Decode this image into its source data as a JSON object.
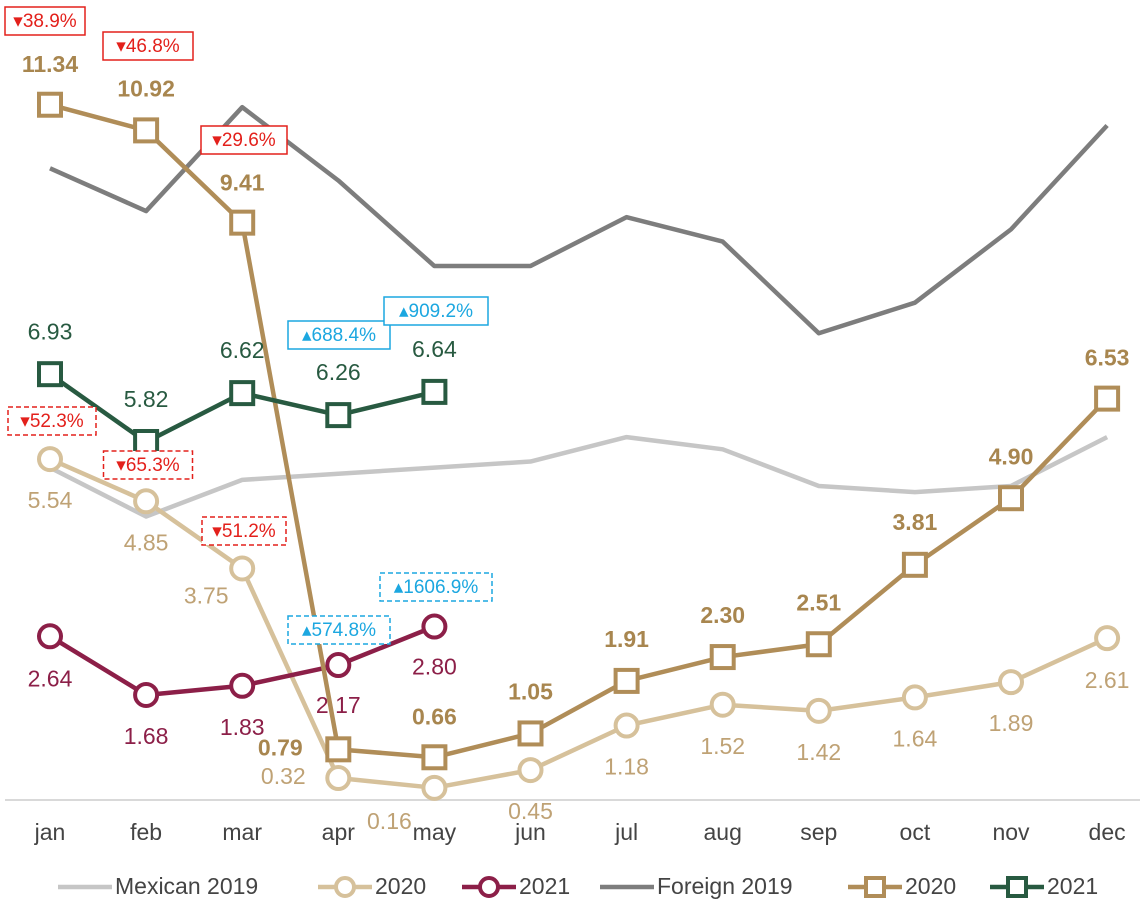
{
  "chart_data": {
    "type": "line",
    "categories": [
      "jan",
      "feb",
      "mar",
      "apr",
      "may",
      "jun",
      "jul",
      "aug",
      "sep",
      "oct",
      "nov",
      "dec"
    ],
    "ylim": [
      0,
      13
    ],
    "series": [
      {
        "name": "Mexican 2019",
        "color": "#c6c6c6",
        "marker": null,
        "values": [
          5.4,
          4.6,
          5.2,
          5.3,
          5.4,
          5.5,
          5.9,
          5.7,
          5.1,
          5.0,
          5.1,
          5.9
        ]
      },
      {
        "name": "2020",
        "color": "#d6c19b",
        "marker": "circle",
        "label_color": "#bfa275",
        "values": [
          5.54,
          4.85,
          3.75,
          0.32,
          0.16,
          0.45,
          1.18,
          1.52,
          1.42,
          1.64,
          1.89,
          2.61
        ],
        "value_labels": [
          "5.54",
          "4.85",
          "3.75",
          "0.32",
          "0.16",
          "0.45",
          "1.18",
          "1.52",
          "1.42",
          "1.64",
          "1.89",
          "2.61"
        ]
      },
      {
        "name": "2021",
        "color": "#8c1f48",
        "marker": "circle",
        "label_color": "#8c1f48",
        "values": [
          2.64,
          1.68,
          1.83,
          2.17,
          2.8,
          null,
          null,
          null,
          null,
          null,
          null,
          null
        ],
        "value_labels": [
          "2.64",
          "1.68",
          "1.83",
          "2.17",
          "2.80",
          null,
          null,
          null,
          null,
          null,
          null,
          null
        ]
      },
      {
        "name": "Foreign 2019",
        "color": "#7d7d7d",
        "marker": null,
        "values": [
          10.3,
          9.6,
          11.3,
          10.1,
          8.7,
          8.7,
          9.5,
          9.1,
          7.6,
          8.1,
          9.3,
          11.0
        ]
      },
      {
        "name": "2020",
        "color": "#b08d58",
        "marker": "square",
        "label_color": "#a8864f",
        "bold_labels": true,
        "values": [
          11.34,
          10.92,
          9.41,
          0.79,
          0.66,
          1.05,
          1.91,
          2.3,
          2.51,
          3.81,
          4.9,
          6.53
        ],
        "value_labels": [
          "11.34",
          "10.92",
          "9.41",
          "0.79",
          "0.66",
          "1.05",
          "1.91",
          "2.30",
          "2.51",
          "3.81",
          "4.90",
          "6.53"
        ]
      },
      {
        "name": "2021",
        "color": "#285a41",
        "marker": "square",
        "label_color": "#285a41",
        "values": [
          6.93,
          5.82,
          6.62,
          6.26,
          6.64,
          null,
          null,
          null,
          null,
          null,
          null,
          null
        ],
        "value_labels": [
          "6.93",
          "5.82",
          "6.62",
          "6.26",
          "6.64",
          null,
          null,
          null,
          null,
          null,
          null,
          null
        ]
      }
    ],
    "annotations": [
      {
        "text": "▾38.9%",
        "color": "#e3201b",
        "dashed": false
      },
      {
        "text": "▾46.8%",
        "color": "#e3201b",
        "dashed": false
      },
      {
        "text": "▾29.6%",
        "color": "#e3201b",
        "dashed": false
      },
      {
        "text": "▴688.4%",
        "color": "#1ca7e0",
        "dashed": false
      },
      {
        "text": "▴909.2%",
        "color": "#1ca7e0",
        "dashed": false
      },
      {
        "text": "▾52.3%",
        "color": "#e3201b",
        "dashed": true
      },
      {
        "text": "▾65.3%",
        "color": "#e3201b",
        "dashed": true
      },
      {
        "text": "▾51.2%",
        "color": "#e3201b",
        "dashed": true
      },
      {
        "text": "▴574.8%",
        "color": "#1ca7e0",
        "dashed": true
      },
      {
        "text": "▴1606.9%",
        "color": "#1ca7e0",
        "dashed": true
      }
    ]
  }
}
